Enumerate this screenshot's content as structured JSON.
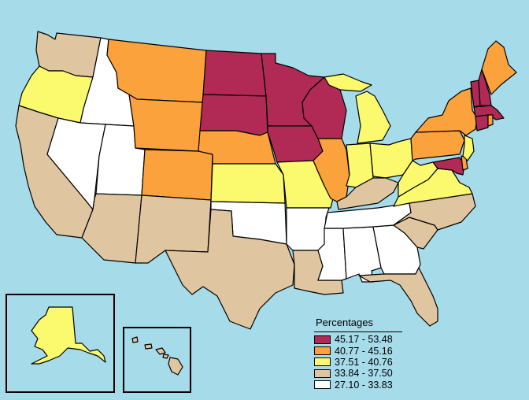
{
  "colors": {
    "water": "#a6dbe9",
    "c1": "#b02a55",
    "c2": "#fba23c",
    "c3": "#fbfa6e",
    "c4": "#e0c6a0",
    "c5": "#ffffff"
  },
  "legend": {
    "title": "Percentages",
    "classes": [
      {
        "id": "c1",
        "label": "45.17 - 53.48"
      },
      {
        "id": "c2",
        "label": "40.77 - 45.16"
      },
      {
        "id": "c3",
        "label": "37.51 - 40.76"
      },
      {
        "id": "c4",
        "label": "33.84 - 37.50"
      },
      {
        "id": "c5",
        "label": "27.10 - 33.83"
      }
    ]
  },
  "states": {
    "ND": "c1",
    "SD": "c1",
    "MN": "c1",
    "WI": "c1",
    "IA": "c1",
    "VT": "c1",
    "NH": "c1",
    "MA": "c1",
    "CT": "c1",
    "MD": "c1",
    "MT": "c2",
    "WY": "c2",
    "CO": "c2",
    "NE": "c2",
    "IL": "c2",
    "NY": "c2",
    "PA": "c2",
    "ME": "c2",
    "DE": "c2",
    "RI": "c2",
    "OR": "c3",
    "KS": "c3",
    "MO": "c3",
    "IN": "c3",
    "OH": "c3",
    "MI": "c3",
    "WV": "c3",
    "VA": "c3",
    "NJ": "c3",
    "AK": "c3",
    "WA": "c4",
    "CA": "c4",
    "AZ": "c4",
    "NM": "c4",
    "TX": "c4",
    "LA": "c4",
    "KY": "c4",
    "NC": "c4",
    "SC": "c4",
    "FL": "c4",
    "HI": "c4",
    "ID": "c5",
    "NV": "c5",
    "UT": "c5",
    "OK": "c5",
    "AR": "c5",
    "MS": "c5",
    "AL": "c5",
    "GA": "c5",
    "TN": "c5"
  }
}
